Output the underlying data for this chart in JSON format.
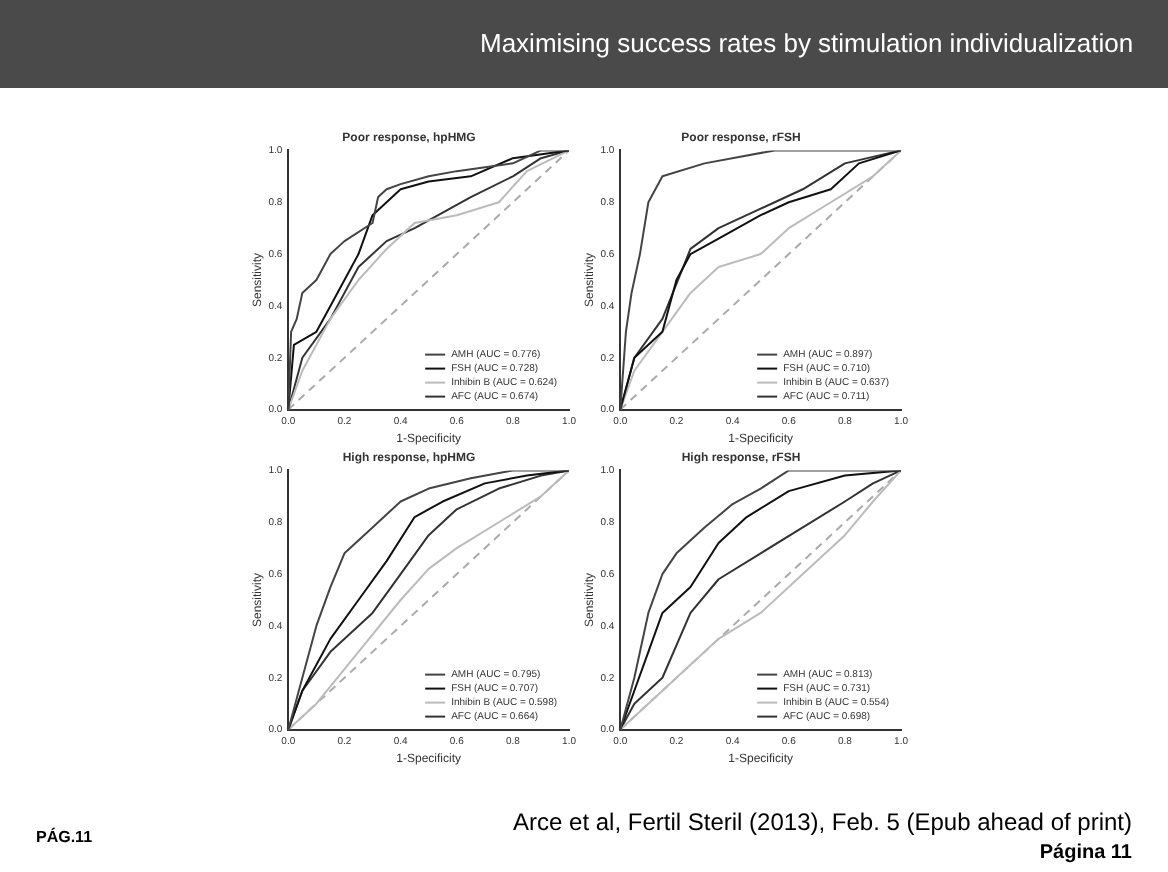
{
  "chart_data": [
    {
      "type": "line",
      "title": "Poor response, hpHMG",
      "xlabel": "1-Specificity",
      "ylabel": "Sensitivity",
      "legend": "bottom right",
      "marker": "none",
      "xlim": [
        0,
        1
      ],
      "ylim": [
        0,
        1
      ],
      "xticks": [
        {
          "value": 0,
          "label": "0.0"
        },
        {
          "value": 0.2,
          "label": "0.2"
        },
        {
          "value": 0.4,
          "label": "0.4"
        },
        {
          "value": 0.6,
          "label": "0.6"
        },
        {
          "value": 0.8,
          "label": "0.8"
        },
        {
          "value": 1,
          "label": "1.0"
        }
      ],
      "yticks": [
        {
          "value": 0,
          "label": "0.0"
        },
        {
          "value": 0.2,
          "label": "0.2"
        },
        {
          "value": 0.4,
          "label": "0.4"
        },
        {
          "value": 0.6,
          "label": "0.6"
        },
        {
          "value": 0.8,
          "label": "0.8"
        },
        {
          "value": 1,
          "label": "1.0"
        }
      ],
      "annotations": [
        "Maximising success rates by stimulation individualization"
      ],
      "series": [
        {
          "name": "AMH (AUC = 0.776)",
          "color": "#444444",
          "line_style": "solid",
          "x": [
            0,
            0.01,
            0.03,
            0.05,
            0.1,
            0.15,
            0.2,
            0.3,
            0.32,
            0.35,
            0.4,
            0.5,
            0.6,
            0.8,
            0.9,
            1
          ],
          "values": [
            0,
            0.3,
            0.35,
            0.45,
            0.5,
            0.6,
            0.65,
            0.72,
            0.82,
            0.85,
            0.87,
            0.9,
            0.92,
            0.95,
            1,
            1
          ]
        },
        {
          "name": "FSH (AUC = 0.728)",
          "color": "#111111",
          "line_style": "solid",
          "x": [
            0,
            0.02,
            0.1,
            0.15,
            0.25,
            0.3,
            0.4,
            0.5,
            0.65,
            0.8,
            1
          ],
          "values": [
            0,
            0.25,
            0.3,
            0.4,
            0.6,
            0.75,
            0.85,
            0.88,
            0.9,
            0.97,
            1
          ]
        },
        {
          "name": "Inhibin B (AUC = 0.624)",
          "color": "#bbbbbb",
          "line_style": "solid",
          "x": [
            0,
            0.05,
            0.15,
            0.25,
            0.35,
            0.45,
            0.6,
            0.75,
            0.85,
            1
          ],
          "values": [
            0,
            0.15,
            0.35,
            0.5,
            0.62,
            0.72,
            0.75,
            0.8,
            0.92,
            1
          ]
        },
        {
          "name": "AFC (AUC = 0.674)",
          "color": "#333333",
          "line_style": "solid",
          "x": [
            0,
            0.05,
            0.15,
            0.25,
            0.35,
            0.45,
            0.55,
            0.65,
            0.8,
            0.9,
            1
          ],
          "values": [
            0,
            0.2,
            0.35,
            0.55,
            0.65,
            0.7,
            0.76,
            0.82,
            0.9,
            0.97,
            1
          ]
        },
        {
          "color": "#aaaaaa",
          "line_style": "dashed",
          "x": [
            0,
            1
          ],
          "values": [
            0,
            1
          ]
        }
      ]
    },
    {
      "type": "line",
      "title": "Poor response, rFSH",
      "xlabel": "1-Specificity",
      "ylabel": "Sensitivity",
      "legend": "bottom right",
      "marker": "none",
      "xlim": [
        0,
        1
      ],
      "ylim": [
        0,
        1
      ],
      "xticks": [
        {
          "value": 0,
          "label": "0.0"
        },
        {
          "value": 0.2,
          "label": "0.2"
        },
        {
          "value": 0.4,
          "label": "0.4"
        },
        {
          "value": 0.6,
          "label": "0.6"
        },
        {
          "value": 0.8,
          "label": "0.8"
        },
        {
          "value": 1,
          "label": "1.0"
        }
      ],
      "yticks": [
        {
          "value": 0,
          "label": "0.0"
        },
        {
          "value": 0.2,
          "label": "0.2"
        },
        {
          "value": 0.4,
          "label": "0.4"
        },
        {
          "value": 0.6,
          "label": "0.6"
        },
        {
          "value": 0.8,
          "label": "0.8"
        },
        {
          "value": 1,
          "label": "1.0"
        }
      ],
      "series": [
        {
          "name": "AMH (AUC = 0.897)",
          "color": "#444444",
          "line_style": "solid",
          "x": [
            0,
            0.02,
            0.04,
            0.07,
            0.1,
            0.15,
            0.3,
            0.55,
            1
          ],
          "values": [
            0,
            0.3,
            0.45,
            0.6,
            0.8,
            0.9,
            0.95,
            1,
            1
          ]
        },
        {
          "name": "FSH (AUC = 0.710)",
          "color": "#111111",
          "line_style": "solid",
          "x": [
            0,
            0.05,
            0.15,
            0.2,
            0.25,
            0.35,
            0.5,
            0.6,
            0.75,
            0.85,
            1
          ],
          "values": [
            0,
            0.2,
            0.3,
            0.5,
            0.6,
            0.66,
            0.75,
            0.8,
            0.85,
            0.95,
            1
          ]
        },
        {
          "name": "Inhibin B (AUC = 0.637)",
          "color": "#bbbbbb",
          "line_style": "solid",
          "x": [
            0,
            0.05,
            0.15,
            0.25,
            0.35,
            0.5,
            0.6,
            0.75,
            0.9,
            1
          ],
          "values": [
            0,
            0.15,
            0.3,
            0.45,
            0.55,
            0.6,
            0.7,
            0.8,
            0.9,
            1
          ]
        },
        {
          "name": "AFC (AUC = 0.711)",
          "color": "#333333",
          "line_style": "solid",
          "x": [
            0,
            0.05,
            0.15,
            0.25,
            0.35,
            0.45,
            0.55,
            0.65,
            0.8,
            1
          ],
          "values": [
            0,
            0.2,
            0.35,
            0.62,
            0.7,
            0.75,
            0.8,
            0.85,
            0.95,
            1
          ]
        },
        {
          "color": "#aaaaaa",
          "line_style": "dashed",
          "x": [
            0,
            1
          ],
          "values": [
            0,
            1
          ]
        }
      ]
    },
    {
      "type": "line",
      "title": "High response, hpHMG",
      "xlabel": "1-Specificity",
      "ylabel": "Sensitivity",
      "legend": "bottom right",
      "marker": "none",
      "xlim": [
        0,
        1
      ],
      "ylim": [
        0,
        1
      ],
      "xticks": [
        {
          "value": 0,
          "label": "0.0"
        },
        {
          "value": 0.2,
          "label": "0.2"
        },
        {
          "value": 0.4,
          "label": "0.4"
        },
        {
          "value": 0.6,
          "label": "0.6"
        },
        {
          "value": 0.8,
          "label": "0.8"
        },
        {
          "value": 1,
          "label": "1.0"
        }
      ],
      "yticks": [
        {
          "value": 0,
          "label": "0.0"
        },
        {
          "value": 0.2,
          "label": "0.2"
        },
        {
          "value": 0.4,
          "label": "0.4"
        },
        {
          "value": 0.6,
          "label": "0.6"
        },
        {
          "value": 0.8,
          "label": "0.8"
        },
        {
          "value": 1,
          "label": "1.0"
        }
      ],
      "series": [
        {
          "name": "AMH (AUC = 0.795)",
          "color": "#444444",
          "line_style": "solid",
          "x": [
            0,
            0.05,
            0.1,
            0.15,
            0.2,
            0.3,
            0.4,
            0.5,
            0.65,
            0.8,
            1
          ],
          "values": [
            0,
            0.2,
            0.4,
            0.55,
            0.68,
            0.78,
            0.88,
            0.93,
            0.97,
            1,
            1
          ]
        },
        {
          "name": "FSH (AUC = 0.707)",
          "color": "#111111",
          "line_style": "solid",
          "x": [
            0,
            0.05,
            0.15,
            0.25,
            0.35,
            0.45,
            0.55,
            0.7,
            0.85,
            1
          ],
          "values": [
            0,
            0.15,
            0.35,
            0.5,
            0.65,
            0.82,
            0.88,
            0.95,
            0.98,
            1
          ]
        },
        {
          "name": "Inhibin B (AUC = 0.598)",
          "color": "#bbbbbb",
          "line_style": "solid",
          "x": [
            0,
            0.1,
            0.25,
            0.4,
            0.5,
            0.6,
            0.75,
            0.9,
            1
          ],
          "values": [
            0,
            0.1,
            0.3,
            0.5,
            0.62,
            0.7,
            0.8,
            0.9,
            1
          ]
        },
        {
          "name": "AFC (AUC = 0.664)",
          "color": "#333333",
          "line_style": "solid",
          "x": [
            0,
            0.05,
            0.15,
            0.3,
            0.4,
            0.5,
            0.6,
            0.75,
            0.9,
            1
          ],
          "values": [
            0,
            0.15,
            0.3,
            0.45,
            0.6,
            0.75,
            0.85,
            0.93,
            0.98,
            1
          ]
        },
        {
          "color": "#aaaaaa",
          "line_style": "dashed",
          "x": [
            0,
            1
          ],
          "values": [
            0,
            1
          ]
        }
      ]
    },
    {
      "type": "line",
      "title": "High response, rFSH",
      "xlabel": "1-Specificity",
      "ylabel": "Sensitivity",
      "legend": "bottom right",
      "marker": "none",
      "xlim": [
        0,
        1
      ],
      "ylim": [
        0,
        1
      ],
      "xticks": [
        {
          "value": 0,
          "label": "0.0"
        },
        {
          "value": 0.2,
          "label": "0.2"
        },
        {
          "value": 0.4,
          "label": "0.4"
        },
        {
          "value": 0.6,
          "label": "0.6"
        },
        {
          "value": 0.8,
          "label": "0.8"
        },
        {
          "value": 1,
          "label": "1.0"
        }
      ],
      "yticks": [
        {
          "value": 0,
          "label": "0.0"
        },
        {
          "value": 0.2,
          "label": "0.2"
        },
        {
          "value": 0.4,
          "label": "0.4"
        },
        {
          "value": 0.6,
          "label": "0.6"
        },
        {
          "value": 0.8,
          "label": "0.8"
        },
        {
          "value": 1,
          "label": "1.0"
        }
      ],
      "annotations": [
        "PÁG.11",
        "Arce et al, Fertil Steril (2013), Feb. 5 (Epub ahead of print)",
        "Página 11"
      ],
      "series": [
        {
          "name": "AMH (AUC = 0.813)",
          "color": "#444444",
          "line_style": "solid",
          "x": [
            0,
            0.05,
            0.1,
            0.15,
            0.2,
            0.3,
            0.4,
            0.5,
            0.6,
            1
          ],
          "values": [
            0,
            0.2,
            0.45,
            0.6,
            0.68,
            0.78,
            0.87,
            0.93,
            1,
            1
          ]
        },
        {
          "name": "FSH (AUC = 0.731)",
          "color": "#111111",
          "line_style": "solid",
          "x": [
            0,
            0.05,
            0.1,
            0.15,
            0.25,
            0.35,
            0.45,
            0.6,
            0.8,
            1
          ],
          "values": [
            0,
            0.15,
            0.3,
            0.45,
            0.55,
            0.72,
            0.82,
            0.92,
            0.98,
            1
          ]
        },
        {
          "name": "Inhibin B (AUC = 0.554)",
          "color": "#bbbbbb",
          "line_style": "solid",
          "x": [
            0,
            0.1,
            0.25,
            0.35,
            0.5,
            0.65,
            0.8,
            0.9,
            1
          ],
          "values": [
            0,
            0.1,
            0.25,
            0.35,
            0.45,
            0.6,
            0.75,
            0.88,
            1
          ]
        },
        {
          "name": "AFC (AUC = 0.698)",
          "color": "#333333",
          "line_style": "solid",
          "x": [
            0,
            0.05,
            0.15,
            0.25,
            0.35,
            0.5,
            0.65,
            0.8,
            0.9,
            1
          ],
          "values": [
            0,
            0.1,
            0.2,
            0.45,
            0.58,
            0.68,
            0.78,
            0.88,
            0.95,
            1
          ]
        },
        {
          "color": "#aaaaaa",
          "line_style": "dashed",
          "x": [
            0,
            1
          ],
          "values": [
            0,
            1
          ]
        }
      ]
    }
  ]
}
